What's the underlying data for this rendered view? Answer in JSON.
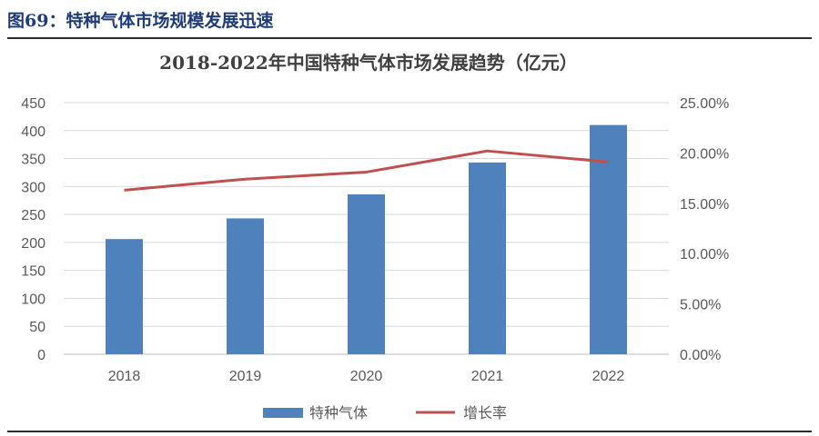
{
  "figure": {
    "caption": "图69：特种气体市场规模发展迅速"
  },
  "chart_data": {
    "type": "bar",
    "title": "2018-2022年中国特种气体市场发展趋势（亿元）",
    "categories": [
      "2018",
      "2019",
      "2020",
      "2021",
      "2022"
    ],
    "series": [
      {
        "name": "特种气体",
        "type": "bar",
        "axis": "left",
        "color": "#4f81bd",
        "values": [
          206,
          243,
          286,
          343,
          410
        ]
      },
      {
        "name": "增长率",
        "type": "line",
        "axis": "right",
        "color": "#c0504d",
        "values": [
          16.3,
          17.4,
          18.1,
          20.2,
          19.1
        ]
      }
    ],
    "y_left": {
      "ylim": [
        0,
        450
      ],
      "ticks": [
        0,
        50,
        100,
        150,
        200,
        250,
        300,
        350,
        400,
        450
      ]
    },
    "y_right": {
      "ylim": [
        0,
        25
      ],
      "ticks": [
        0,
        5,
        10,
        15,
        20,
        25
      ],
      "tick_labels": [
        "0.00%",
        "5.00%",
        "10.00%",
        "15.00%",
        "20.00%",
        "25.00%"
      ]
    },
    "grid": true,
    "legend": "bottom"
  }
}
